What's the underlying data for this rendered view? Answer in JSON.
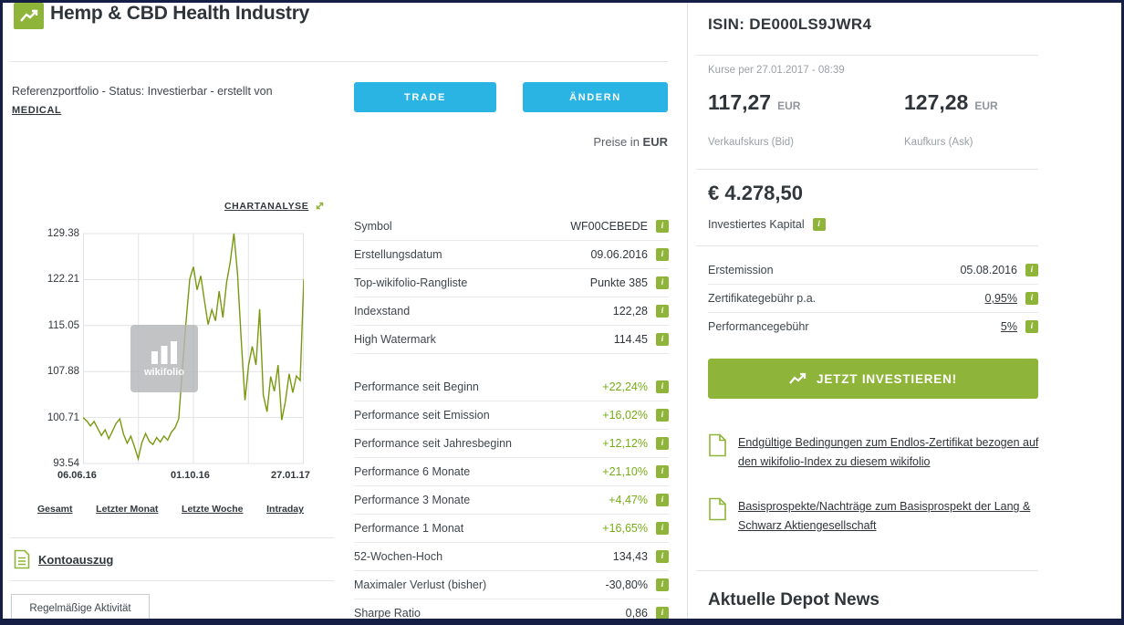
{
  "header": {
    "title": "Hemp & CBD Health Industry"
  },
  "portfolio": {
    "status_line": "Referenzportfolio - Status: Investierbar - erstellt von",
    "creator": "MEDICAL",
    "trade_button": "TRADE",
    "change_button": "ÄNDERN",
    "prices_in_label": "Preise in",
    "currency": "EUR"
  },
  "chart": {
    "analysis_label": "CHARTANALYSE",
    "watermark": "wikifolio",
    "y_ticks": [
      "129.38",
      "122.21",
      "115.05",
      "107.88",
      "100.71",
      "93.54"
    ],
    "x_labels": [
      "06.06.16",
      "01.10.16",
      "27.01.17"
    ],
    "tabs": [
      "Gesamt",
      "Letzter Monat",
      "Letzte Woche",
      "Intraday"
    ],
    "y_min": 93.54,
    "y_max": 129.38,
    "type": "line",
    "series": [
      100.7,
      100.2,
      99.4,
      100.1,
      99.0,
      97.9,
      98.8,
      97.4,
      98.6,
      99.8,
      100.5,
      98.1,
      96.7,
      97.8,
      96.1,
      94.3,
      96.8,
      98.2,
      97.0,
      96.5,
      97.6,
      96.9,
      97.8,
      97.2,
      98.4,
      99.1,
      100.5,
      108.2,
      115.6,
      122.3,
      124.2,
      120.6,
      122.8,
      118.9,
      115.2,
      117.5,
      115.8,
      120.4,
      116.3,
      121.7,
      124.9,
      129.4,
      123.0,
      112.8,
      103.4,
      108.9,
      111.8,
      108.9,
      117.6,
      104.2,
      101.6,
      107.1,
      104.8,
      108.9,
      100.3,
      103.2,
      107.5,
      104.6,
      107.2,
      106.5,
      122.3
    ]
  },
  "left_footer": {
    "kontoauszug": "Kontoauszug",
    "activity_badge": "Regelmäßige Aktivität"
  },
  "stats_table": {
    "groups": [
      [
        {
          "label": "Symbol",
          "value": "WF00CEBEDE",
          "green": false
        },
        {
          "label": "Erstellungsdatum",
          "value": "09.06.2016",
          "green": false
        },
        {
          "label": "Top-wikifolio-Rangliste",
          "value": "Punkte 385",
          "green": false
        },
        {
          "label": "Indexstand",
          "value": "122,28",
          "green": false
        },
        {
          "label": "High Watermark",
          "value": "114.45",
          "green": false
        }
      ],
      [
        {
          "label": "Performance seit Beginn",
          "value": "+22,24%",
          "green": true
        },
        {
          "label": "Performance seit Emission",
          "value": "+16,02%",
          "green": true
        },
        {
          "label": "Performance seit Jahresbeginn",
          "value": "+12,12%",
          "green": true
        },
        {
          "label": "Performance 6 Monate",
          "value": "+21,10%",
          "green": true
        },
        {
          "label": "Performance 3 Monate",
          "value": "+4,47%",
          "green": true
        },
        {
          "label": "Performance 1 Monat",
          "value": "+16,65%",
          "green": true
        },
        {
          "label": "52-Wochen-Hoch",
          "value": "134,43",
          "green": false
        },
        {
          "label": "Maximaler Verlust (bisher)",
          "value": "-30,80%",
          "green": false
        },
        {
          "label": "Sharpe Ratio",
          "value": "0,86",
          "green": false
        }
      ]
    ]
  },
  "sidebar": {
    "isin_label": "ISIN: DE000LS9JWR4",
    "quote_time": "Kurse per 27.01.2017 - 08:39",
    "bid": {
      "value": "117,27",
      "currency": "EUR",
      "label": "Verkaufskurs (Bid)"
    },
    "ask": {
      "value": "127,28",
      "currency": "EUR",
      "label": "Kaufkurs (Ask)"
    },
    "capital": {
      "value": "€ 4.278,50",
      "label": "Investiertes Kapital"
    },
    "details": [
      {
        "label": "Erstemission",
        "value": "05.08.2016",
        "underline": false
      },
      {
        "label": "Zertifikategebühr p.a.",
        "value": "0,95%",
        "underline": true
      },
      {
        "label": "Performancegebühr",
        "value": "5%",
        "underline": true
      }
    ],
    "invest_button": "JETZT INVESTIEREN!",
    "documents": [
      "Endgültige Bedingungen zum Endlos-Zertifikat bezogen auf den wikifolio-Index zu diesem wikifolio",
      "Basisprospekte/Nachträge zum Basisprospekt der Lang & Schwarz Aktiengesellschaft"
    ],
    "news_heading": "Aktuelle Depot News"
  },
  "colors": {
    "brand_green": "#8fb43a",
    "action_cyan": "#29b4e3",
    "positive_green": "#76ad15",
    "chart_line": "#78990f",
    "frame_navy": "#151f45"
  }
}
